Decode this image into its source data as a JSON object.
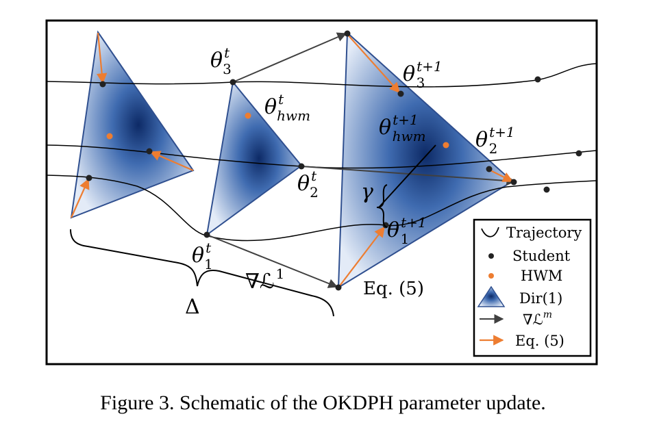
{
  "figure": {
    "caption": "Figure 3. Schematic of the OKDPH parameter update."
  },
  "labels": {
    "theta3_t": {
      "base": "θ",
      "sub": "3",
      "sup": "t"
    },
    "theta_hwm_t": {
      "base": "θ",
      "sub": "hwm",
      "sup": "t"
    },
    "theta2_t": {
      "base": "θ",
      "sub": "2",
      "sup": "t"
    },
    "theta1_t": {
      "base": "θ",
      "sub": "1",
      "sup": "t"
    },
    "theta3_t1": {
      "base": "θ",
      "sub": "3",
      "sup": "t+1"
    },
    "theta_hwm_t1": {
      "base": "θ",
      "sub": "hwm",
      "sup": "t+1"
    },
    "theta2_t1": {
      "base": "θ",
      "sub": "2",
      "sup": "t+1"
    },
    "theta1_t1": {
      "base": "θ",
      "sub": "1",
      "sup": "t+1"
    },
    "gamma": "γ",
    "grad": {
      "base": "∇ℒ",
      "sup": "1"
    },
    "delta": "Δ",
    "eq5": "Eq. (5)"
  },
  "legend": {
    "items": [
      {
        "symbol": "trajectory",
        "label": "Trajectory"
      },
      {
        "symbol": "student-dot",
        "label": "Student"
      },
      {
        "symbol": "hwm-dot",
        "label": "HWM"
      },
      {
        "symbol": "dir-triangle",
        "label": "Dir(1)"
      },
      {
        "symbol": "grad-arrow",
        "label": "∇ℒ",
        "sup": "m"
      },
      {
        "symbol": "eq5-arrow",
        "label": "Eq. (5)"
      }
    ]
  },
  "colors": {
    "student": "#222222",
    "hwm": "#ed7d31",
    "grad_arrow": "#404040",
    "eq5_arrow": "#ed7d31",
    "simplex_dark": "#0d2a66",
    "simplex_light": "#e3ebf7",
    "simplex_edge": "#2f4f8f"
  }
}
